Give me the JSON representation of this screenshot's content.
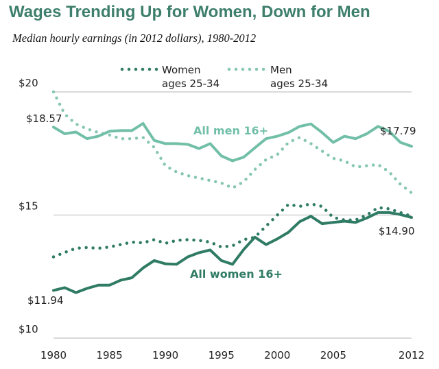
{
  "title": "Wages Trending Up for Women, Down for Men",
  "subtitle": "Median hourly earnings (in 2012 dollars), 1980-2012",
  "chart_data": {
    "type": "line",
    "title": "Wages Trending Up for Women, Down for Men",
    "subtitle": "Median hourly earnings (in 2012 dollars), 1980-2012",
    "xlim": [
      1980,
      2012
    ],
    "ylim": [
      10,
      20
    ],
    "x_ticks": [
      1980,
      1985,
      1990,
      1995,
      2000,
      2005,
      2012
    ],
    "x_tick_labels": [
      "1980",
      "1985",
      "1990",
      "1995",
      "2000",
      "2005",
      "2012"
    ],
    "y_ticks": [
      10,
      15,
      20
    ],
    "y_tick_labels": [
      "$10",
      "$15",
      "$20"
    ],
    "grid": "horizontal at $10, $15, $20",
    "legend": "top, horizontal",
    "x": [
      1980,
      1981,
      1982,
      1983,
      1984,
      1985,
      1986,
      1987,
      1988,
      1989,
      1990,
      1991,
      1992,
      1993,
      1994,
      1995,
      1996,
      1997,
      1998,
      1999,
      2000,
      2001,
      2002,
      2003,
      2004,
      2005,
      2006,
      2007,
      2008,
      2009,
      2010,
      2011,
      2012
    ],
    "series": [
      {
        "name": "All men 16+",
        "style": "solid",
        "color": "#72bfa8",
        "values": [
          18.57,
          18.3,
          18.37,
          18.1,
          18.2,
          18.4,
          18.43,
          18.43,
          18.72,
          18.03,
          17.9,
          17.9,
          17.87,
          17.7,
          17.9,
          17.4,
          17.2,
          17.35,
          17.73,
          18.1,
          18.2,
          18.35,
          18.6,
          18.7,
          18.35,
          17.95,
          18.2,
          18.1,
          18.3,
          18.6,
          18.4,
          17.95,
          17.79
        ]
      },
      {
        "name": "All women 16+",
        "style": "solid",
        "color": "#2f7b64",
        "values": [
          11.94,
          12.05,
          11.85,
          12.02,
          12.15,
          12.15,
          12.35,
          12.45,
          12.85,
          13.15,
          13.02,
          13.0,
          13.3,
          13.47,
          13.58,
          13.15,
          13.0,
          13.6,
          14.1,
          13.8,
          14.03,
          14.3,
          14.73,
          14.95,
          14.65,
          14.7,
          14.75,
          14.7,
          14.88,
          15.1,
          15.1,
          15.02,
          14.9
        ]
      },
      {
        "name": "Women ages 25-34",
        "style": "dotted",
        "color": "#2f7b64",
        "values": [
          13.3,
          13.48,
          13.65,
          13.68,
          13.65,
          13.7,
          13.8,
          13.9,
          13.87,
          14.0,
          13.85,
          13.97,
          14.0,
          13.97,
          13.9,
          13.7,
          13.75,
          14.0,
          14.1,
          14.55,
          15.0,
          15.43,
          15.35,
          15.45,
          15.35,
          14.9,
          14.8,
          14.8,
          15.0,
          15.3,
          15.25,
          15.1,
          14.95
        ]
      },
      {
        "name": "Men ages 25-34",
        "style": "dotted",
        "color": "#86c6b2",
        "values": [
          20.0,
          19.1,
          18.7,
          18.5,
          18.35,
          18.25,
          18.1,
          18.1,
          18.15,
          17.75,
          17.0,
          16.75,
          16.6,
          16.5,
          16.4,
          16.3,
          16.1,
          16.35,
          16.85,
          17.25,
          17.45,
          17.95,
          18.15,
          17.9,
          17.6,
          17.3,
          17.2,
          16.95,
          17.0,
          17.05,
          16.75,
          16.25,
          15.9
        ]
      }
    ],
    "annotations": [
      "$18.57",
      "$17.79",
      "$11.94",
      "$14.90",
      "All men 16+",
      "All women 16+"
    ]
  },
  "legend": {
    "women": {
      "line1": "Women",
      "line2": "ages 25-34"
    },
    "men": {
      "line1": "Men",
      "line2": "ages 25-34"
    }
  },
  "annotations": {
    "men_start": "$18.57",
    "men_end": "$17.79",
    "women_start": "$11.94",
    "women_end": "$14.90",
    "men_label": "All men 16+",
    "women_label": "All women 16+"
  },
  "colors": {
    "title": "#3e7f6c",
    "men": "#72bfa8",
    "women": "#2f7b64",
    "young_men": "#86c6b2",
    "young_women": "#2f7b64",
    "grid": "#b3b3b3"
  }
}
